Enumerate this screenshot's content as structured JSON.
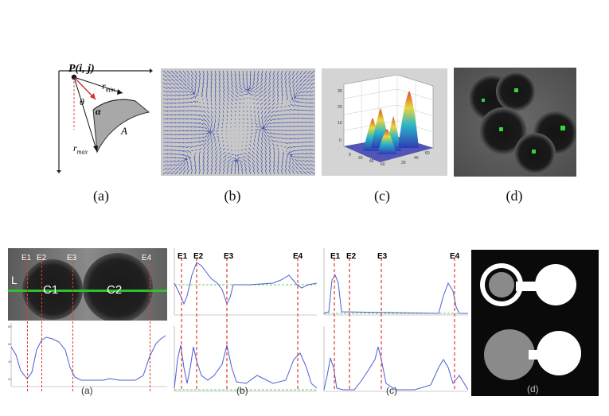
{
  "top": {
    "panel_a": {
      "point_label": "P(i, j)",
      "theta": "θ",
      "alpha": "α",
      "rmin": "r",
      "rmin_sub": "min",
      "rmax": "r",
      "rmax_sub": "max",
      "area": "A"
    },
    "captions": [
      "(a)",
      "(b)",
      "(c)",
      "(d)"
    ]
  },
  "bottom": {
    "edges": [
      "E1",
      "E2",
      "E3",
      "E4"
    ],
    "panel_a": {
      "line_label": "L",
      "circle1": "C1",
      "circle2": "C2"
    },
    "captions": [
      "(a)",
      "(b)",
      "(c)",
      "(d)"
    ]
  },
  "colors": {
    "edge_line": "#e23b2e",
    "profile": "#4a5fd0",
    "scan_line": "#2fbf2f",
    "vector_field": "#2a3aa8",
    "center_marker": "#3ad23a"
  }
}
